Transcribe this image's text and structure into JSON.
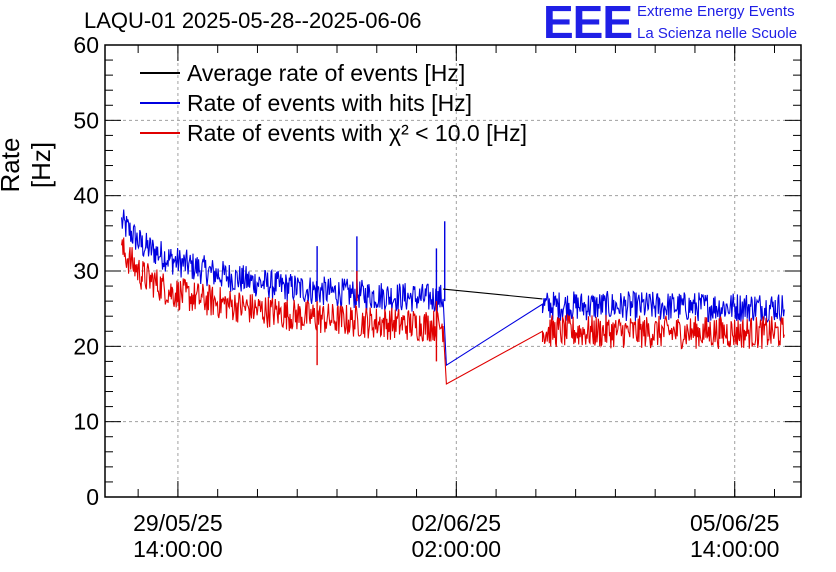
{
  "header": {
    "title": "LAQU-01 2025-05-28--2025-06-06",
    "logo_mark": "EEE",
    "logo_line1": "Extreme Energy Events",
    "logo_line2": "La Scienza nelle Scuole"
  },
  "colors": {
    "average": "#000000",
    "hits": "#0000e0",
    "chi2": "#e00000",
    "logo": "#1f1fe6",
    "grid": "#a0a0a0"
  },
  "chart_data": {
    "type": "line",
    "title": "LAQU-01 2025-05-28--2025-06-06",
    "ylabel": "Rate [Hz]",
    "xlabel": "",
    "ylim": [
      0,
      60
    ],
    "yticks": [
      0,
      10,
      20,
      30,
      40,
      50,
      60
    ],
    "xlim": [
      "2025-05-28 16:00",
      "2025-06-06 10:00"
    ],
    "xticks": [
      {
        "at": "2025-05-29 14:00",
        "date": "29/05/25",
        "time": "14:00:00"
      },
      {
        "at": "2025-06-02 02:00",
        "date": "02/06/25",
        "time": "02:00:00"
      },
      {
        "at": "2025-06-05 14:00",
        "date": "05/06/25",
        "time": "14:00:00"
      }
    ],
    "grid": true,
    "legend_position": "top-left",
    "series": [
      {
        "name": "Average rate of events [Hz]",
        "color": "#000000",
        "points": [
          [
            "2025-06-01 22:00",
            27.6
          ],
          [
            "2025-06-03 04:00",
            26.3
          ]
        ]
      },
      {
        "name": "Rate of events with hits [Hz]",
        "color": "#0000e0",
        "noise": 2.0,
        "points": [
          [
            "2025-05-28 21:00",
            36.5
          ],
          [
            "2025-05-29 03:00",
            33.5
          ],
          [
            "2025-05-29 12:00",
            31.5
          ],
          [
            "2025-05-30 00:00",
            29.8
          ],
          [
            "2025-05-30 12:00",
            28.6
          ],
          [
            "2025-05-31 00:00",
            27.8
          ],
          [
            "2025-05-31 12:00",
            27.2
          ],
          [
            "2025-06-01 00:00",
            26.8
          ],
          [
            "2025-06-01 12:00",
            26.5
          ],
          [
            "2025-06-01 22:00",
            26.3
          ],
          [
            "2025-06-01 23:00",
            17.5
          ],
          [
            "2025-06-03 04:00",
            25.6
          ],
          [
            "2025-06-03 05:00",
            25.4
          ],
          [
            "2025-06-04 12:00",
            25.3
          ],
          [
            "2025-06-06 05:00",
            25.2
          ]
        ],
        "spikes": [
          [
            "2025-05-31 08:00",
            33.3
          ],
          [
            "2025-05-31 20:00",
            34.6
          ],
          [
            "2025-06-01 20:00",
            33.0
          ],
          [
            "2025-06-01 22:30",
            36.6
          ]
        ]
      },
      {
        "name": "Rate of events with χ² < 10.0 [Hz]",
        "color": "#e00000",
        "noise": 2.2,
        "points": [
          [
            "2025-05-28 21:00",
            32.8
          ],
          [
            "2025-05-29 03:00",
            29.5
          ],
          [
            "2025-05-29 12:00",
            27.2
          ],
          [
            "2025-05-30 00:00",
            26.0
          ],
          [
            "2025-05-30 12:00",
            25.0
          ],
          [
            "2025-05-31 00:00",
            24.2
          ],
          [
            "2025-05-31 12:00",
            23.6
          ],
          [
            "2025-06-01 00:00",
            23.2
          ],
          [
            "2025-06-01 12:00",
            22.9
          ],
          [
            "2025-06-01 22:00",
            22.7
          ],
          [
            "2025-06-01 23:00",
            15.0
          ],
          [
            "2025-06-03 04:00",
            22.0
          ],
          [
            "2025-06-03 05:00",
            22.0
          ],
          [
            "2025-06-04 12:00",
            21.9
          ],
          [
            "2025-06-06 05:00",
            21.8
          ]
        ],
        "spikes": [
          [
            "2025-05-31 08:00",
            17.5
          ],
          [
            "2025-05-31 20:00",
            30.0
          ],
          [
            "2025-06-01 20:00",
            18.0
          ]
        ]
      }
    ]
  }
}
